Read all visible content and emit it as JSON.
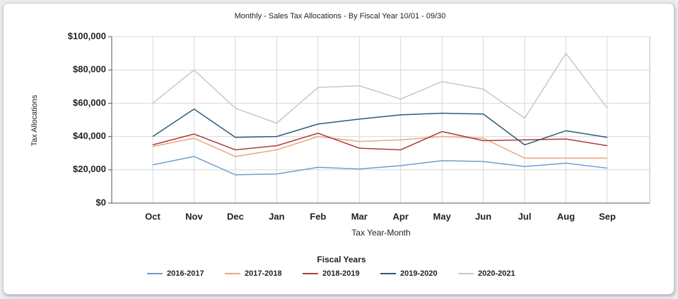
{
  "chart_data": {
    "type": "line",
    "title": "Monthly - Sales Tax Allocations - By Fiscal Year 10/01 - 09/30",
    "x_label": "Tax Year-Month",
    "y_label": "Tax Allocations",
    "legend_title": "Fiscal Years",
    "categories": [
      "Oct",
      "Nov",
      "Dec",
      "Jan",
      "Feb",
      "Mar",
      "Apr",
      "May",
      "Jun",
      "Jul",
      "Aug",
      "Sep"
    ],
    "series": [
      {
        "name": "2016-2017",
        "color": "#6a9fcf",
        "values": [
          23000,
          28000,
          17000,
          17500,
          21500,
          20500,
          22500,
          25500,
          25000,
          22000,
          24000,
          21000
        ]
      },
      {
        "name": "2017-2018",
        "color": "#e8a880",
        "values": [
          34000,
          39000,
          28000,
          32000,
          40000,
          37000,
          38000,
          40000,
          39000,
          27000,
          27000,
          27000
        ]
      },
      {
        "name": "2018-2019",
        "color": "#b03a3a",
        "values": [
          35000,
          41500,
          32000,
          34500,
          42000,
          33000,
          32000,
          43000,
          37500,
          38000,
          38500,
          34500
        ]
      },
      {
        "name": "2019-2020",
        "color": "#2c5a7a",
        "values": [
          40000,
          56500,
          39500,
          40000,
          47500,
          50500,
          53000,
          54000,
          53500,
          35000,
          43500,
          39500
        ]
      },
      {
        "name": "2020-2021",
        "color": "#c4c8cc",
        "values": [
          60000,
          80000,
          57000,
          48000,
          69500,
          70500,
          62500,
          73000,
          68500,
          51000,
          90000,
          57000
        ]
      }
    ],
    "ylim": [
      0,
      100000
    ],
    "yticks": [
      {
        "value": 0,
        "label": "$0"
      },
      {
        "value": 20000,
        "label": "$20,000"
      },
      {
        "value": 40000,
        "label": "$40,000"
      },
      {
        "value": 60000,
        "label": "$60,000"
      },
      {
        "value": 80000,
        "label": "$80,000"
      },
      {
        "value": 100000,
        "label": "$100,000"
      }
    ],
    "grid": true,
    "legend_position": "bottom"
  }
}
